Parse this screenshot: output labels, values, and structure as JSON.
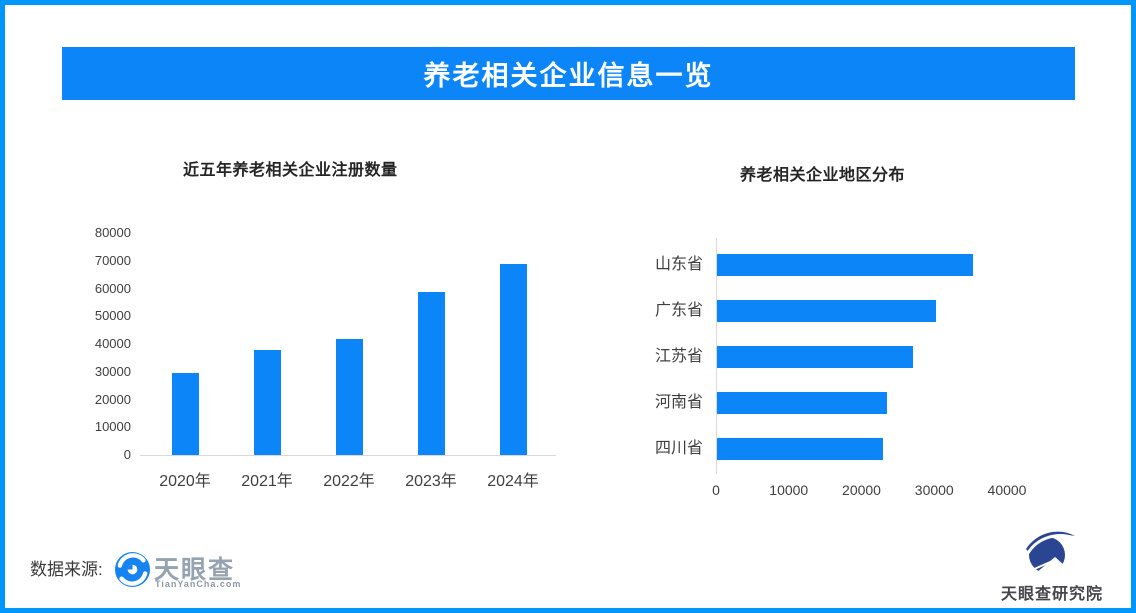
{
  "banner": {
    "title": "养老相关企业信息一览"
  },
  "footer": {
    "source_label": "数据来源:",
    "tianyancha": {
      "name": "天眼查",
      "domain": "TianYanCha.com"
    },
    "research_institute": "天眼查研究院"
  },
  "colors": {
    "accent": "#0b85f7",
    "border": "#0196fb",
    "axis_line": "#d9d9d9",
    "tick_text": "#404040",
    "title_text": "#262626",
    "logo_gray": "#95a2af",
    "navy": "#2a4693"
  },
  "chart_data": [
    {
      "type": "bar",
      "orientation": "vertical",
      "title": "近五年养老相关企业注册数量",
      "categories": [
        "2020年",
        "2021年",
        "2022年",
        "2023年",
        "2024年"
      ],
      "values": [
        29600,
        37800,
        41700,
        58900,
        69000
      ],
      "xlabel": "",
      "ylabel": "",
      "ylim": [
        0,
        80000
      ],
      "yticks": [
        0,
        10000,
        20000,
        30000,
        40000,
        50000,
        60000,
        70000,
        80000
      ],
      "grid": false,
      "legend": false,
      "bar_color": "#0b85f7"
    },
    {
      "type": "bar",
      "orientation": "horizontal",
      "title": "养老相关企业地区分布",
      "categories": [
        "山东省",
        "广东省",
        "江苏省",
        "河南省",
        "四川省"
      ],
      "values": [
        35200,
        30100,
        27000,
        23400,
        22800
      ],
      "xlabel": "",
      "ylabel": "",
      "xlim": [
        0,
        40000
      ],
      "xticks": [
        0,
        10000,
        20000,
        30000,
        40000
      ],
      "grid": false,
      "legend": false,
      "bar_color": "#0b85f7"
    }
  ]
}
